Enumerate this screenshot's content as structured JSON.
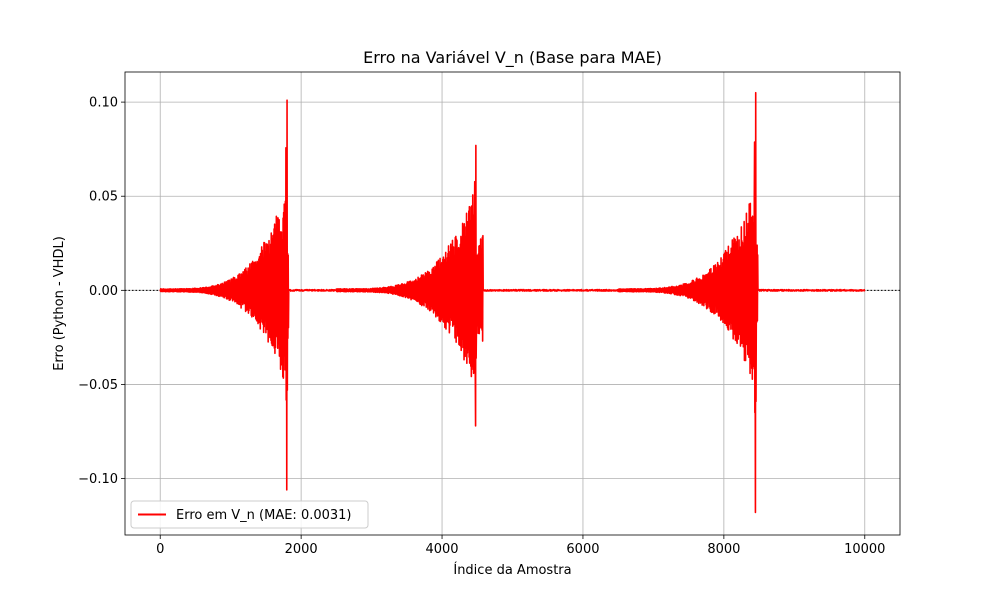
{
  "chart_data": {
    "type": "line",
    "title": "Erro na Variável V_n (Base para MAE)",
    "xlabel": "Índice da Amostra",
    "ylabel": "Erro (Python - VHDL)",
    "xlim": [
      -500,
      10500
    ],
    "ylim": [
      -0.13,
      0.116
    ],
    "xticks": [
      0,
      2000,
      4000,
      6000,
      8000,
      10000
    ],
    "xtick_labels": [
      "0",
      "2000",
      "4000",
      "6000",
      "8000",
      "10000"
    ],
    "yticks": [
      -0.1,
      -0.05,
      0.0,
      0.05,
      0.1
    ],
    "ytick_labels": [
      "−0.10",
      "−0.05",
      "0.00",
      "0.05",
      "0.10"
    ],
    "grid": true,
    "legend_position": "lower-left",
    "reference_line": {
      "y": 0,
      "style": "dotted",
      "color": "#000000"
    },
    "series": [
      {
        "name": "Erro em V_n (MAE: 0.0031)",
        "color": "#ff0000",
        "x_range": [
          0,
          10000
        ],
        "bursts": [
          {
            "start": 0,
            "peak": 1800,
            "end": 1820,
            "max": 0.101,
            "min": -0.106
          },
          {
            "start": 2500,
            "peak": 4480,
            "end": 4580,
            "max": 0.077,
            "min": -0.072
          },
          {
            "start": 6500,
            "peak": 8450,
            "end": 8480,
            "max": 0.105,
            "min": -0.118
          }
        ]
      }
    ]
  }
}
